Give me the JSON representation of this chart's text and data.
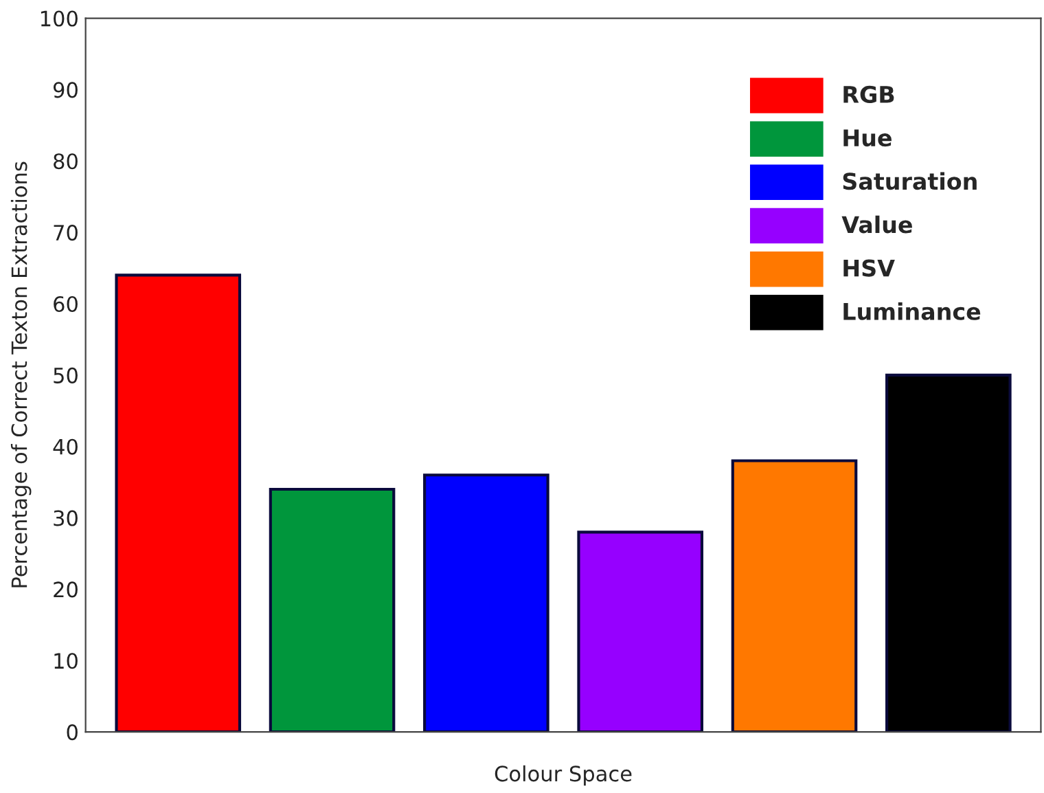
{
  "chart_data": {
    "type": "bar",
    "xlabel": "Colour Space",
    "ylabel": "Percentage of Correct Texton Extractions",
    "categories": [
      null,
      null,
      null,
      null,
      null,
      null
    ],
    "series": [
      {
        "name": "RGB",
        "color": "#ff0000",
        "values": [
          64,
          null,
          null,
          null,
          null,
          null
        ]
      },
      {
        "name": "Hue",
        "color": "#00963c",
        "values": [
          null,
          34,
          null,
          null,
          null,
          null
        ]
      },
      {
        "name": "Saturation",
        "color": "#0000ff",
        "values": [
          null,
          null,
          36,
          null,
          null,
          null
        ]
      },
      {
        "name": "Value",
        "color": "#9600ff",
        "values": [
          null,
          null,
          null,
          28,
          null,
          null
        ]
      },
      {
        "name": "HSV",
        "color": "#ff7800",
        "values": [
          null,
          null,
          null,
          null,
          38,
          null
        ]
      },
      {
        "name": "Luminance",
        "color": "#000000",
        "values": [
          null,
          null,
          null,
          null,
          null,
          50
        ]
      }
    ],
    "ylim": [
      0,
      100
    ],
    "yticks": [
      0,
      10,
      20,
      30,
      40,
      50,
      60,
      70,
      80,
      90,
      100
    ],
    "grid": false,
    "legend": "top right"
  }
}
